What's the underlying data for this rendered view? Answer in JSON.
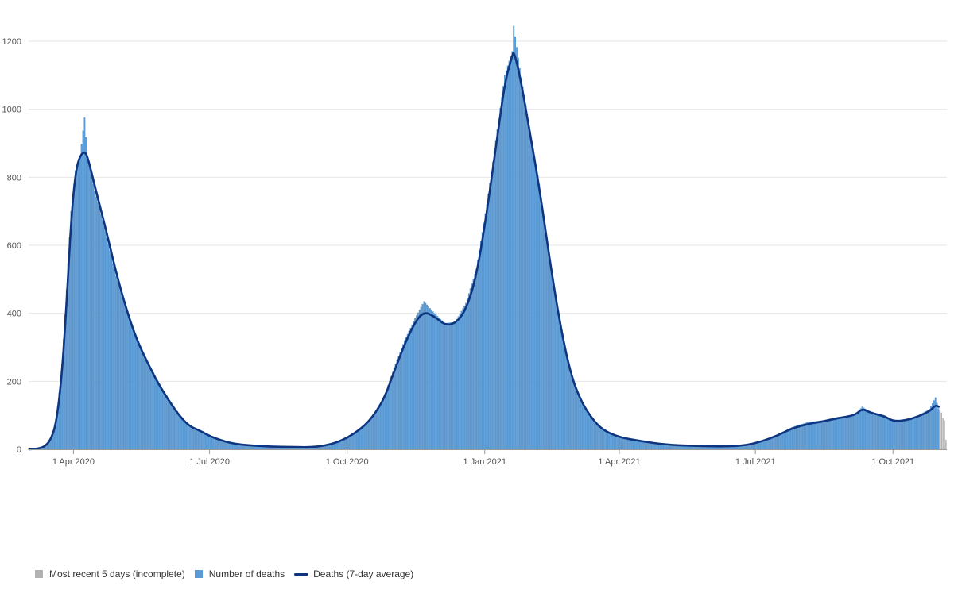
{
  "colors": {
    "bar": "#5b9bd5",
    "bar_edge": "#3f80c0",
    "incomplete": "#b3b3b3",
    "line": "#0d3580",
    "grid": "#e6e6e6",
    "axis": "#9a9a9a"
  },
  "chart_data": {
    "type": "bar",
    "title": "",
    "xlabel": "",
    "ylabel": "",
    "x_start": "2020-03-02",
    "x_end": "2021-11-05",
    "ylim": [
      0,
      1200
    ],
    "y_ticks": [
      "0",
      "200",
      "400",
      "600",
      "800",
      "1000",
      "1200"
    ],
    "x_ticks": [
      {
        "date": "2020-04-01",
        "label": "1 Apr 2020"
      },
      {
        "date": "2020-07-01",
        "label": "1 Jul 2020"
      },
      {
        "date": "2020-10-01",
        "label": "1 Oct 2020"
      },
      {
        "date": "2021-01-01",
        "label": "1 Jan 2021"
      },
      {
        "date": "2021-04-01",
        "label": "1 Apr 2021"
      },
      {
        "date": "2021-07-01",
        "label": "1 Jul 2021"
      },
      {
        "date": "2021-10-01",
        "label": "1 Oct 2021"
      }
    ],
    "grid": true,
    "legend_position": "bottom-left",
    "series": [
      {
        "name": "Number of deaths",
        "kind": "bar",
        "points": [
          [
            "2020-03-02",
            0
          ],
          [
            "2020-03-08",
            2
          ],
          [
            "2020-03-12",
            8
          ],
          [
            "2020-03-16",
            25
          ],
          [
            "2020-03-20",
            80
          ],
          [
            "2020-03-24",
            250
          ],
          [
            "2020-03-27",
            470
          ],
          [
            "2020-03-30",
            700
          ],
          [
            "2020-04-02",
            820
          ],
          [
            "2020-04-05",
            860
          ],
          [
            "2020-04-08",
            975
          ],
          [
            "2020-04-10",
            860
          ],
          [
            "2020-04-15",
            760
          ],
          [
            "2020-04-22",
            640
          ],
          [
            "2020-04-29",
            510
          ],
          [
            "2020-05-06",
            410
          ],
          [
            "2020-05-13",
            320
          ],
          [
            "2020-05-20",
            260
          ],
          [
            "2020-05-27",
            200
          ],
          [
            "2020-06-03",
            150
          ],
          [
            "2020-06-10",
            105
          ],
          [
            "2020-06-17",
            70
          ],
          [
            "2020-06-24",
            55
          ],
          [
            "2020-07-01",
            40
          ],
          [
            "2020-07-08",
            28
          ],
          [
            "2020-07-15",
            18
          ],
          [
            "2020-07-25",
            12
          ],
          [
            "2020-08-10",
            8
          ],
          [
            "2020-08-25",
            7
          ],
          [
            "2020-09-05",
            6
          ],
          [
            "2020-09-15",
            10
          ],
          [
            "2020-09-25",
            22
          ],
          [
            "2020-10-05",
            45
          ],
          [
            "2020-10-15",
            80
          ],
          [
            "2020-10-25",
            150
          ],
          [
            "2020-11-01",
            240
          ],
          [
            "2020-11-08",
            320
          ],
          [
            "2020-11-15",
            385
          ],
          [
            "2020-11-21",
            435
          ],
          [
            "2020-11-28",
            400
          ],
          [
            "2020-12-05",
            370
          ],
          [
            "2020-12-12",
            375
          ],
          [
            "2020-12-19",
            430
          ],
          [
            "2020-12-26",
            530
          ],
          [
            "2021-01-02",
            720
          ],
          [
            "2021-01-09",
            940
          ],
          [
            "2021-01-14",
            1100
          ],
          [
            "2021-01-19",
            1170
          ],
          [
            "2021-01-20",
            1245
          ],
          [
            "2021-01-24",
            1120
          ],
          [
            "2021-01-30",
            960
          ],
          [
            "2021-02-06",
            780
          ],
          [
            "2021-02-13",
            560
          ],
          [
            "2021-02-20",
            370
          ],
          [
            "2021-02-27",
            220
          ],
          [
            "2021-03-06",
            140
          ],
          [
            "2021-03-13",
            95
          ],
          [
            "2021-03-20",
            60
          ],
          [
            "2021-03-31",
            38
          ],
          [
            "2021-04-15",
            25
          ],
          [
            "2021-05-01",
            15
          ],
          [
            "2021-05-20",
            10
          ],
          [
            "2021-06-10",
            8
          ],
          [
            "2021-06-25",
            12
          ],
          [
            "2021-07-05",
            25
          ],
          [
            "2021-07-15",
            40
          ],
          [
            "2021-07-25",
            65
          ],
          [
            "2021-08-05",
            80
          ],
          [
            "2021-08-15",
            85
          ],
          [
            "2021-08-25",
            95
          ],
          [
            "2021-09-05",
            100
          ],
          [
            "2021-09-10",
            125
          ],
          [
            "2021-09-15",
            110
          ],
          [
            "2021-09-25",
            100
          ],
          [
            "2021-10-01",
            82
          ],
          [
            "2021-10-10",
            88
          ],
          [
            "2021-10-18",
            100
          ],
          [
            "2021-10-25",
            118
          ],
          [
            "2021-10-29",
            152
          ],
          [
            "2021-10-31",
            120
          ]
        ]
      },
      {
        "name": "Deaths (7-day average)",
        "kind": "line",
        "points": [
          [
            "2020-03-02",
            0
          ],
          [
            "2020-03-08",
            2
          ],
          [
            "2020-03-12",
            8
          ],
          [
            "2020-03-16",
            25
          ],
          [
            "2020-03-20",
            75
          ],
          [
            "2020-03-24",
            230
          ],
          [
            "2020-03-27",
            440
          ],
          [
            "2020-03-30",
            680
          ],
          [
            "2020-04-02",
            820
          ],
          [
            "2020-04-05",
            865
          ],
          [
            "2020-04-08",
            875
          ],
          [
            "2020-04-10",
            860
          ],
          [
            "2020-04-15",
            770
          ],
          [
            "2020-04-22",
            650
          ],
          [
            "2020-04-29",
            520
          ],
          [
            "2020-05-06",
            410
          ],
          [
            "2020-05-13",
            320
          ],
          [
            "2020-05-20",
            255
          ],
          [
            "2020-05-27",
            195
          ],
          [
            "2020-06-03",
            145
          ],
          [
            "2020-06-10",
            100
          ],
          [
            "2020-06-17",
            68
          ],
          [
            "2020-06-24",
            55
          ],
          [
            "2020-07-01",
            38
          ],
          [
            "2020-07-08",
            27
          ],
          [
            "2020-07-15",
            18
          ],
          [
            "2020-07-25",
            12
          ],
          [
            "2020-08-10",
            8
          ],
          [
            "2020-08-25",
            7
          ],
          [
            "2020-09-05",
            6
          ],
          [
            "2020-09-15",
            10
          ],
          [
            "2020-09-25",
            22
          ],
          [
            "2020-10-05",
            45
          ],
          [
            "2020-10-15",
            80
          ],
          [
            "2020-10-25",
            145
          ],
          [
            "2020-11-01",
            230
          ],
          [
            "2020-11-08",
            310
          ],
          [
            "2020-11-15",
            375
          ],
          [
            "2020-11-21",
            405
          ],
          [
            "2020-11-28",
            390
          ],
          [
            "2020-12-05",
            365
          ],
          [
            "2020-12-12",
            370
          ],
          [
            "2020-12-19",
            410
          ],
          [
            "2020-12-26",
            510
          ],
          [
            "2021-01-02",
            700
          ],
          [
            "2021-01-09",
            920
          ],
          [
            "2021-01-14",
            1080
          ],
          [
            "2021-01-19",
            1160
          ],
          [
            "2021-01-20",
            1170
          ],
          [
            "2021-01-24",
            1100
          ],
          [
            "2021-01-30",
            950
          ],
          [
            "2021-02-06",
            770
          ],
          [
            "2021-02-13",
            555
          ],
          [
            "2021-02-20",
            365
          ],
          [
            "2021-02-27",
            220
          ],
          [
            "2021-03-06",
            140
          ],
          [
            "2021-03-13",
            92
          ],
          [
            "2021-03-20",
            58
          ],
          [
            "2021-03-31",
            36
          ],
          [
            "2021-04-15",
            24
          ],
          [
            "2021-05-01",
            14
          ],
          [
            "2021-05-20",
            10
          ],
          [
            "2021-06-10",
            8
          ],
          [
            "2021-06-25",
            12
          ],
          [
            "2021-07-05",
            24
          ],
          [
            "2021-07-15",
            40
          ],
          [
            "2021-07-25",
            62
          ],
          [
            "2021-08-05",
            75
          ],
          [
            "2021-08-15",
            82
          ],
          [
            "2021-08-25",
            92
          ],
          [
            "2021-09-05",
            100
          ],
          [
            "2021-09-10",
            120
          ],
          [
            "2021-09-15",
            108
          ],
          [
            "2021-09-25",
            97
          ],
          [
            "2021-10-01",
            82
          ],
          [
            "2021-10-10",
            86
          ],
          [
            "2021-10-18",
            98
          ],
          [
            "2021-10-25",
            112
          ],
          [
            "2021-10-29",
            130
          ],
          [
            "2021-10-31",
            125
          ]
        ]
      },
      {
        "name": "Most recent 5 days (incomplete)",
        "kind": "bar",
        "points": [
          [
            "2021-11-01",
            115
          ],
          [
            "2021-11-02",
            108
          ],
          [
            "2021-11-03",
            92
          ],
          [
            "2021-11-04",
            85
          ],
          [
            "2021-11-05",
            28
          ]
        ]
      }
    ]
  },
  "legend": {
    "items": [
      {
        "label": "Most recent 5 days (incomplete)",
        "swatch": "incomplete"
      },
      {
        "label": "Number of deaths",
        "swatch": "bar"
      },
      {
        "label": "Deaths (7-day average)",
        "swatch": "line"
      }
    ]
  }
}
